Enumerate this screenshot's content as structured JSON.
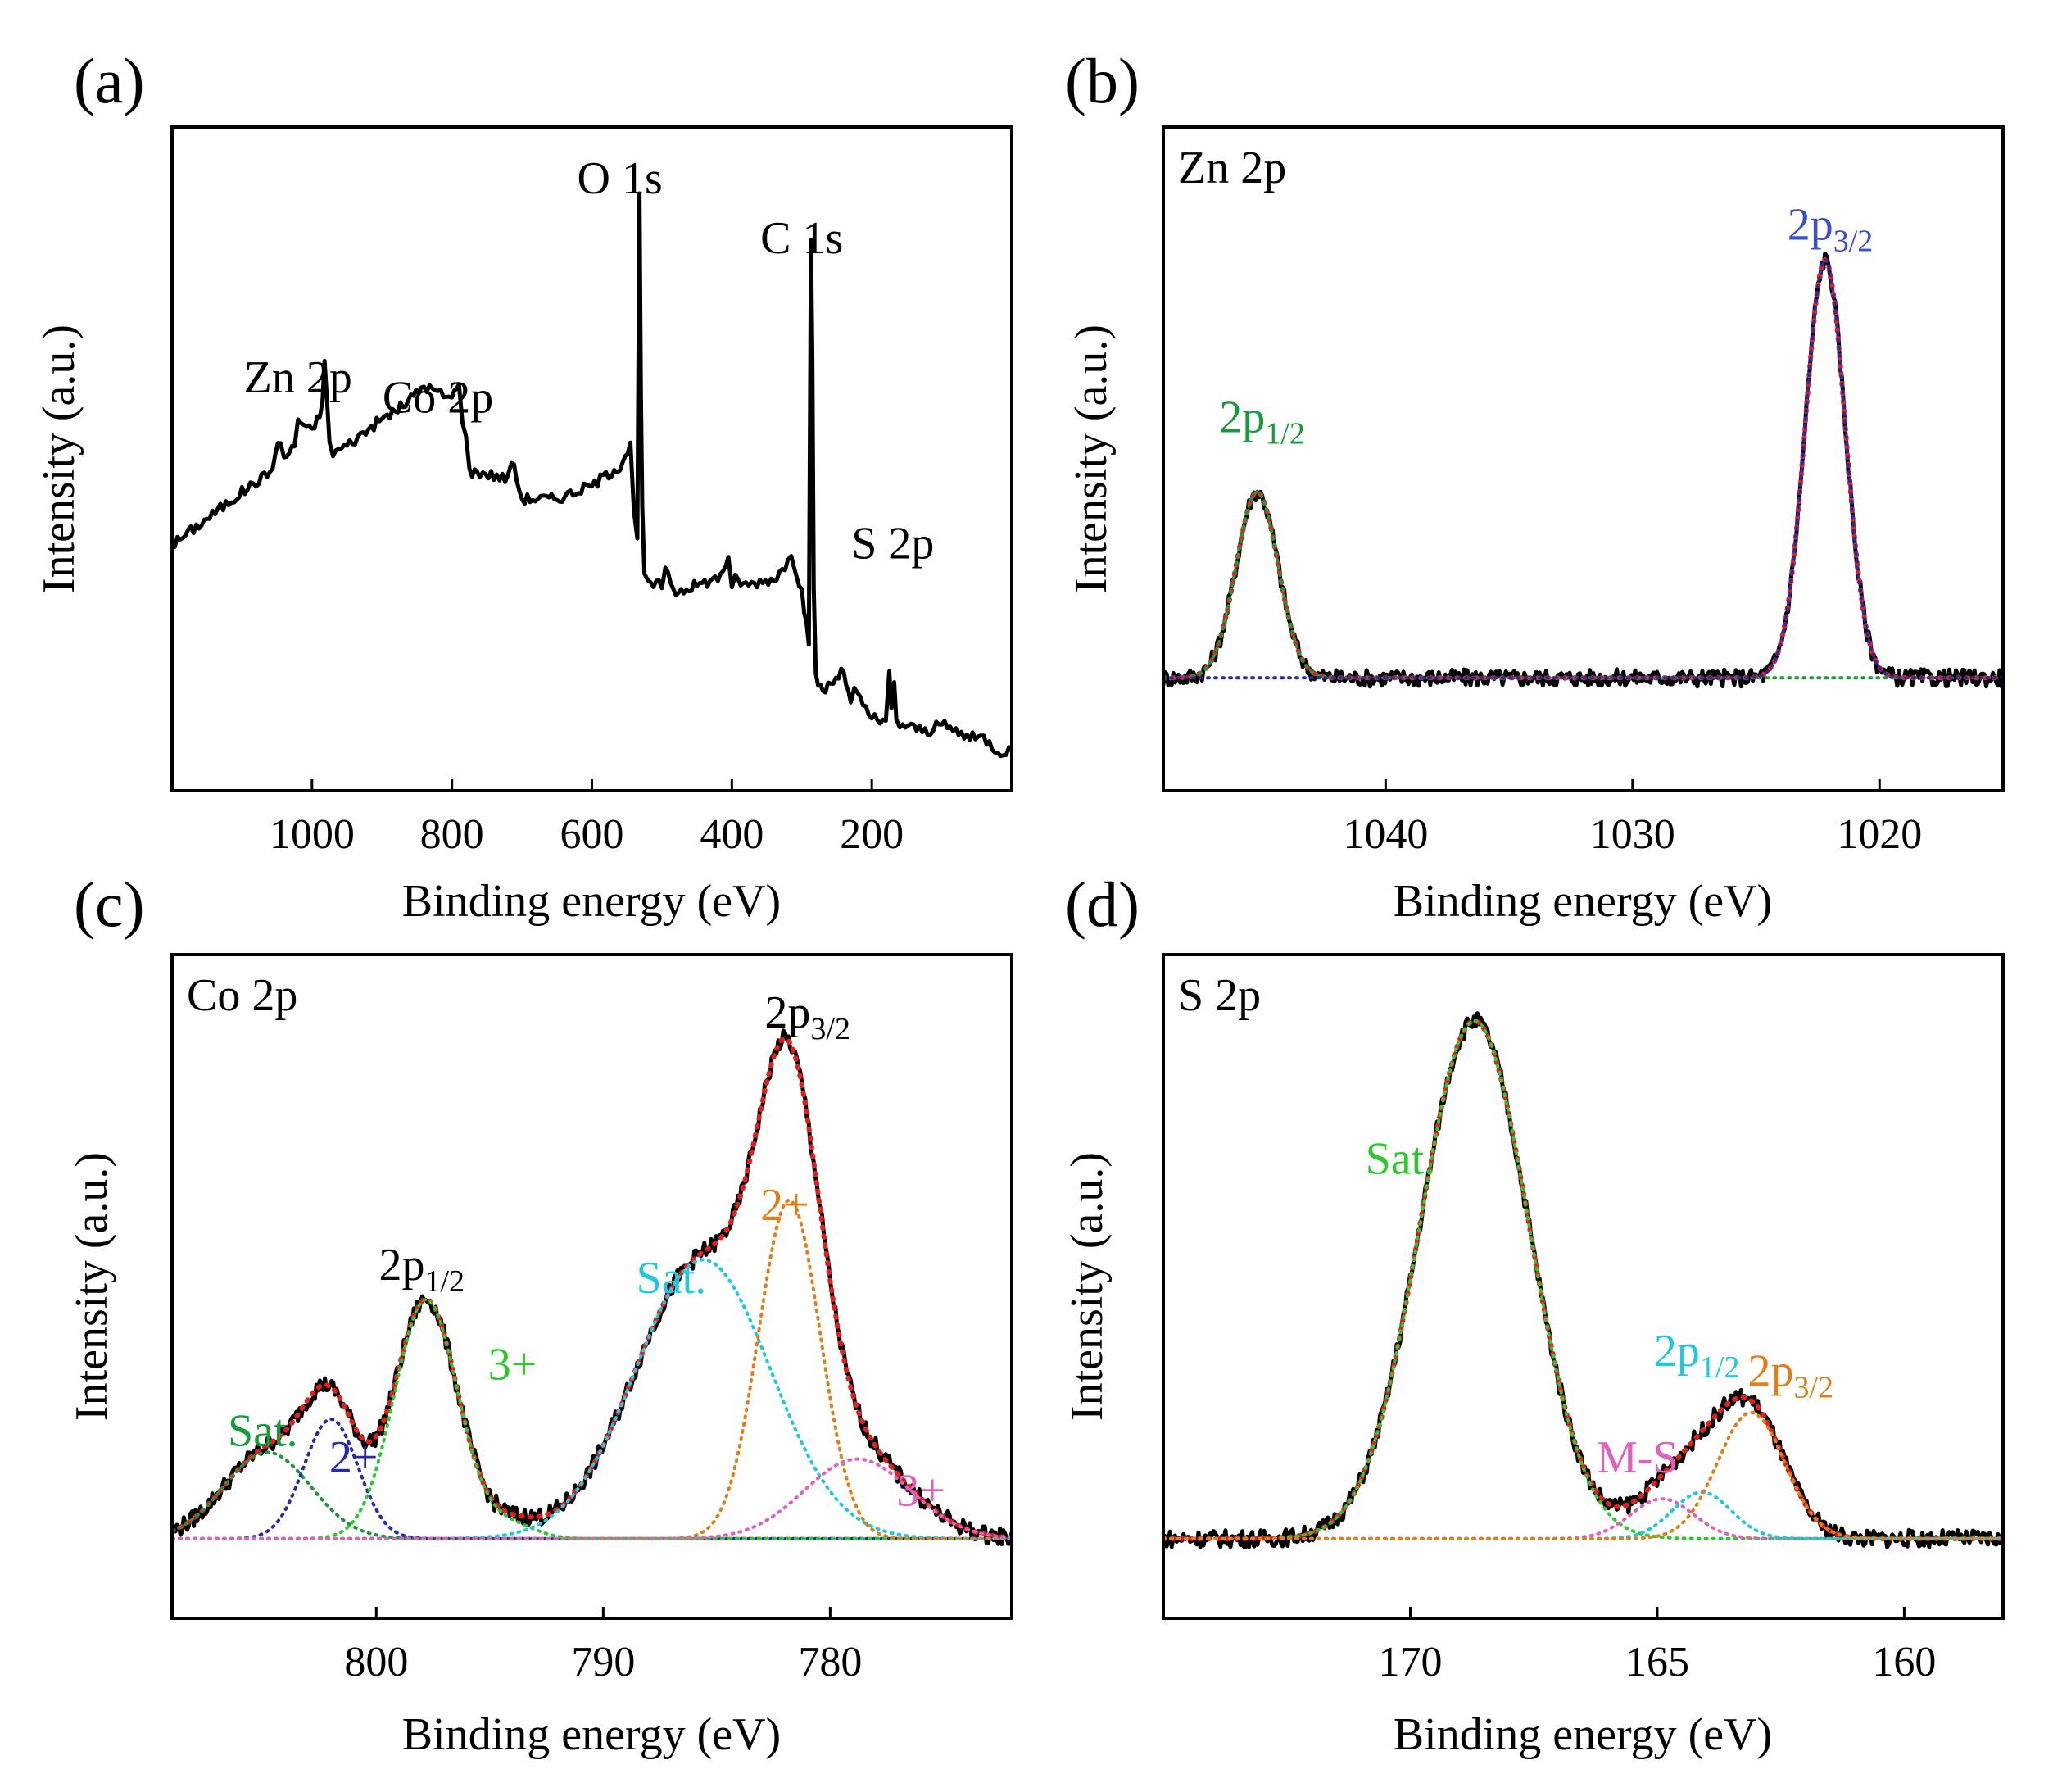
{
  "chart_data": [
    {
      "panel": "(a)",
      "type": "line",
      "title": "",
      "xlabel": "Binding energy (eV)",
      "ylabel": "Intensity (a.u.)",
      "xlim": [
        1200,
        0
      ],
      "ylim": [
        0,
        100
      ],
      "xticks": [
        1000,
        800,
        600,
        400,
        200
      ],
      "annotations": [
        {
          "text": "O 1s",
          "x": 560,
          "y": 90,
          "color": "#000000"
        },
        {
          "text": "C 1s",
          "x": 300,
          "y": 81,
          "color": "#000000"
        },
        {
          "text": "Zn 2p",
          "x": 1020,
          "y": 60,
          "color": "#000000"
        },
        {
          "text": "Co 2p",
          "x": 820,
          "y": 57,
          "color": "#000000"
        },
        {
          "text": "S 2p",
          "x": 170,
          "y": 35,
          "color": "#000000"
        }
      ],
      "series": [
        {
          "name": "survey",
          "color": "#000000",
          "width": 5,
          "x": [
            1200,
            1150,
            1100,
            1060,
            1045,
            1040,
            1025,
            1020,
            1000,
            985,
            982,
            978,
            975,
            970,
            950,
            900,
            870,
            840,
            820,
            800,
            790,
            785,
            780,
            775,
            760,
            720,
            715,
            700,
            650,
            600,
            560,
            545,
            540,
            535,
            532,
            530,
            528,
            525,
            520,
            500,
            495,
            480,
            450,
            420,
            405,
            400,
            395,
            380,
            340,
            320,
            315,
            300,
            290,
            287,
            285,
            283,
            280,
            270,
            240,
            230,
            225,
            200,
            180,
            175,
            172,
            168,
            165,
            160,
            120,
            100,
            80,
            60,
            40,
            20,
            0
          ],
          "y": [
            37,
            41,
            45,
            48,
            53,
            50,
            52,
            56,
            54,
            58,
            65,
            58,
            52,
            51,
            52,
            56,
            58,
            61,
            60,
            59,
            62,
            55,
            54,
            48,
            48,
            47,
            50,
            44,
            44,
            46,
            49,
            52,
            42,
            38,
            90,
            60,
            42,
            33,
            31,
            31,
            33,
            30,
            31,
            32,
            35,
            30,
            32,
            31,
            32,
            34,
            36,
            30,
            22,
            83,
            65,
            30,
            17,
            15,
            18,
            13,
            15,
            11,
            10,
            18,
            12,
            16,
            11,
            10,
            9,
            10,
            9,
            8,
            8,
            6,
            6
          ]
        }
      ]
    },
    {
      "panel": "(b)",
      "type": "line",
      "title": "Zn 2p",
      "xlabel": "Binding energy (eV)",
      "ylabel": "Intensity (a.u.)",
      "xlim": [
        1049,
        1015
      ],
      "ylim": [
        0,
        100
      ],
      "xticks": [
        1040,
        1030,
        1020
      ],
      "annotations": [
        {
          "text": "2p",
          "sub": "1/2",
          "x": 1045,
          "y": 54,
          "color": "#1a9a3a"
        },
        {
          "text": "2p",
          "sub": "3/2",
          "x": 1022,
          "y": 83,
          "color": "#3a4fd0"
        }
      ],
      "series": [
        {
          "name": "data",
          "color": "#000000",
          "width": 5,
          "style": "solid"
        },
        {
          "name": "fit",
          "color": "#e0201c",
          "width": 6,
          "style": "dotted"
        },
        {
          "name": "2p1/2 component",
          "color": "#1a9a3a",
          "width": 4,
          "style": "dotted"
        },
        {
          "name": "2p3/2 component",
          "color": "#2a2aa8",
          "width": 4,
          "style": "dotted"
        }
      ],
      "peaks": [
        {
          "center": 1045.2,
          "height": 28,
          "fwhm": 2.0,
          "component": "2p1/2 component"
        },
        {
          "center": 1022.2,
          "height": 63,
          "fwhm": 1.9,
          "component": "2p3/2 component"
        }
      ],
      "background": 17
    },
    {
      "panel": "(c)",
      "type": "line",
      "title": "Co 2p",
      "xlabel": "Binding energy (eV)",
      "ylabel": "Intensity (a.u.)",
      "xlim": [
        809,
        772
      ],
      "ylim": [
        0,
        100
      ],
      "xticks": [
        800,
        790,
        780
      ],
      "annotations": [
        {
          "text": "2p",
          "sub": "3/2",
          "x": 781,
          "y": 89,
          "color": "#000000"
        },
        {
          "text": "2p",
          "sub": "1/2",
          "x": 798,
          "y": 51,
          "color": "#000000"
        },
        {
          "text": "2+",
          "x": 782,
          "y": 60,
          "color": "#e07f1a"
        },
        {
          "text": "Sat.",
          "x": 787,
          "y": 49,
          "color": "#20c8e0"
        },
        {
          "text": "3+",
          "x": 794,
          "y": 36,
          "color": "#2ec82e"
        },
        {
          "text": "Sat.",
          "x": 805,
          "y": 26,
          "color": "#1a9a3a"
        },
        {
          "text": "2+",
          "x": 801,
          "y": 22,
          "color": "#2a2aa8"
        },
        {
          "text": "3+",
          "x": 776,
          "y": 17,
          "color": "#e060c0"
        }
      ],
      "series": [
        {
          "name": "data",
          "color": "#000000",
          "width": 5,
          "style": "solid"
        },
        {
          "name": "fit",
          "color": "#e0201c",
          "width": 6,
          "style": "dotted"
        },
        {
          "name": "Sat. (2p1/2)",
          "color": "#1a9a3a",
          "width": 4,
          "style": "dotted"
        },
        {
          "name": "2+ (2p1/2)",
          "color": "#2a2aa8",
          "width": 4,
          "style": "dotted"
        },
        {
          "name": "3+ (2p1/2)",
          "color": "#2ec82e",
          "width": 4,
          "style": "dotted"
        },
        {
          "name": "Sat. (2p3/2)",
          "color": "#20c8e0",
          "width": 4,
          "style": "dotted"
        },
        {
          "name": "2+ (2p3/2)",
          "color": "#e07f1a",
          "width": 4,
          "style": "dotted"
        },
        {
          "name": "3+ (2p3/2)",
          "color": "#e060c0",
          "width": 4,
          "style": "dotted"
        }
      ],
      "peaks": [
        {
          "center": 804.8,
          "height": 13,
          "fwhm": 4.5,
          "component": "Sat. (2p1/2)"
        },
        {
          "center": 802.0,
          "height": 18,
          "fwhm": 2.8,
          "component": "2+ (2p1/2)"
        },
        {
          "center": 797.8,
          "height": 36,
          "fwhm": 3.3,
          "component": "3+ (2p1/2)"
        },
        {
          "center": 794.0,
          "height": 2,
          "fwhm": 2.5,
          "component": "3+ (2p1/2)"
        },
        {
          "center": 785.6,
          "height": 42,
          "fwhm": 7.0,
          "component": "Sat. (2p3/2)"
        },
        {
          "center": 781.8,
          "height": 51,
          "fwhm": 3.2,
          "component": "2+ (2p3/2)"
        },
        {
          "center": 778.8,
          "height": 12,
          "fwhm": 5.5,
          "component": "3+ (2p3/2)"
        }
      ],
      "background": 12
    },
    {
      "panel": "(d)",
      "type": "line",
      "title": "S 2p",
      "xlabel": "Binding energy (eV)",
      "ylabel": "Intensity (a.u.)",
      "xlim": [
        175,
        158
      ],
      "ylim": [
        0,
        100
      ],
      "xticks": [
        170,
        165,
        160
      ],
      "annotations": [
        {
          "text": "Sat.",
          "x": 170.2,
          "y": 67,
          "color": "#2ec82e"
        },
        {
          "text": "2p",
          "sub": "1/2",
          "x": 164.2,
          "y": 38,
          "color": "#20c8e0"
        },
        {
          "text": "2p",
          "sub": "3/2",
          "x": 162.3,
          "y": 35,
          "color": "#e07f1a"
        },
        {
          "text": "M-S",
          "x": 165.4,
          "y": 22,
          "color": "#e060c0"
        }
      ],
      "series": [
        {
          "name": "data",
          "color": "#000000",
          "width": 5,
          "style": "solid"
        },
        {
          "name": "fit",
          "color": "#e0201c",
          "width": 6,
          "style": "dotted"
        },
        {
          "name": "Sat.",
          "color": "#2ec82e",
          "width": 4,
          "style": "dotted"
        },
        {
          "name": "M-S",
          "color": "#e060c0",
          "width": 4,
          "style": "dotted"
        },
        {
          "name": "2p1/2",
          "color": "#20c8e0",
          "width": 4,
          "style": "dotted"
        },
        {
          "name": "2p3/2",
          "color": "#e07f1a",
          "width": 4,
          "style": "dotted"
        }
      ],
      "peaks": [
        {
          "center": 168.7,
          "height": 78,
          "fwhm": 2.6,
          "component": "Sat."
        },
        {
          "center": 164.9,
          "height": 6,
          "fwhm": 1.5,
          "component": "M-S"
        },
        {
          "center": 164.1,
          "height": 7,
          "fwhm": 1.4,
          "component": "2p1/2"
        },
        {
          "center": 163.1,
          "height": 19,
          "fwhm": 1.6,
          "component": "2p3/2"
        }
      ],
      "background": 12
    }
  ]
}
